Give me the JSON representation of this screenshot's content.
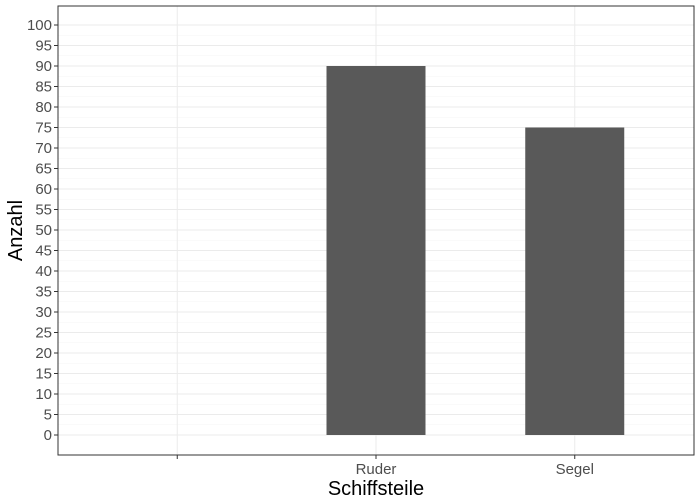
{
  "chart_data": {
    "type": "bar",
    "categories": [
      "",
      "Ruder",
      "Segel"
    ],
    "values": [
      null,
      90,
      75
    ],
    "xlabel": "Schiffsteile",
    "ylabel": "Anzahl",
    "ylim": [
      0,
      100
    ],
    "yticks": [
      0,
      5,
      10,
      15,
      20,
      25,
      30,
      35,
      40,
      45,
      50,
      55,
      60,
      65,
      70,
      75,
      80,
      85,
      90,
      95,
      100
    ],
    "grid": true,
    "legend": "none",
    "bar_color": "#595959",
    "panel_border_color": "#333333",
    "grid_color": "#ebebeb"
  }
}
